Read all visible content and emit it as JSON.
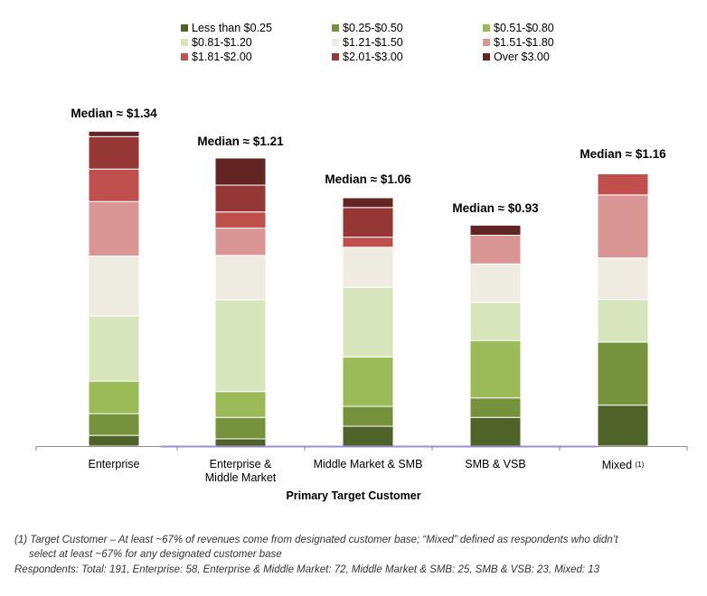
{
  "chart_data": {
    "type": "bar",
    "stacked": true,
    "percent": true,
    "categories": [
      "Enterprise",
      "Enterprise & Middle Market",
      "Middle Market & SMB",
      "SMB & VSB",
      "Mixed"
    ],
    "category_lines": [
      [
        "Enterprise"
      ],
      [
        "Enterprise &",
        "Middle Market"
      ],
      [
        "Middle Market & SMB"
      ],
      [
        "SMB & VSB"
      ],
      [
        "Mixed"
      ]
    ],
    "category_sup": [
      "",
      "",
      "",
      "",
      "(1)"
    ],
    "medians": [
      "Median ≈ $1.34",
      "Median ≈ $1.21",
      "Median ≈ $1.06",
      "Median ≈ $0.93",
      "Median ≈ $1.16"
    ],
    "series": [
      {
        "name": "Less than $0.25",
        "color": "#4f6228",
        "values": [
          3.4,
          2.3,
          6.3,
          9.1,
          13.0
        ]
      },
      {
        "name": "$0.25-$0.50",
        "color": "#76923c",
        "values": [
          6.9,
          6.8,
          6.3,
          6.2,
          20.0
        ]
      },
      {
        "name": "$0.51-$0.80",
        "color": "#9bbb59",
        "values": [
          10.3,
          8.2,
          15.7,
          18.2,
          0.0
        ]
      },
      {
        "name": "$0.81-$1.20",
        "color": "#d7e4bc",
        "values": [
          20.7,
          29.1,
          22.1,
          12.1,
          13.5
        ]
      },
      {
        "name": "$1.21-$1.50",
        "color": "#eeece1",
        "values": [
          19.0,
          14.1,
          12.7,
          12.2,
          13.2
        ]
      },
      {
        "name": "$1.51-$1.80",
        "color": "#da9694",
        "values": [
          17.3,
          8.7,
          0.0,
          9.1,
          20.0
        ]
      },
      {
        "name": "$1.81-$2.00",
        "color": "#c0504d",
        "values": [
          10.3,
          5.1,
          3.2,
          0.0,
          6.7
        ]
      },
      {
        "name": "$2.01-$3.00",
        "color": "#953735",
        "values": [
          10.3,
          8.5,
          9.4,
          0.0,
          0.0
        ]
      },
      {
        "name": "Over $3.00",
        "color": "#632523",
        "values": [
          1.7,
          8.6,
          3.1,
          3.2,
          0.0
        ]
      }
    ],
    "totals": [
      100,
      91,
      79,
      70,
      87
    ],
    "xlabel": "Primary Target Customer",
    "ylabel": "",
    "ylim": [
      0,
      100
    ],
    "grid": false,
    "legend_position": "top"
  },
  "footnotes": {
    "line1": "(1)    Target Customer – At least ~67% of revenues come from designated customer base; “Mixed” defined as respondents who didn’t",
    "line2": "select at least ~67% for any designated customer base",
    "line3": "Respondents: Total: 191, Enterprise: 58, Enterprise & Middle Market: 72, Middle Market & SMB: 25, SMB & VSB: 23, Mixed: 13"
  }
}
